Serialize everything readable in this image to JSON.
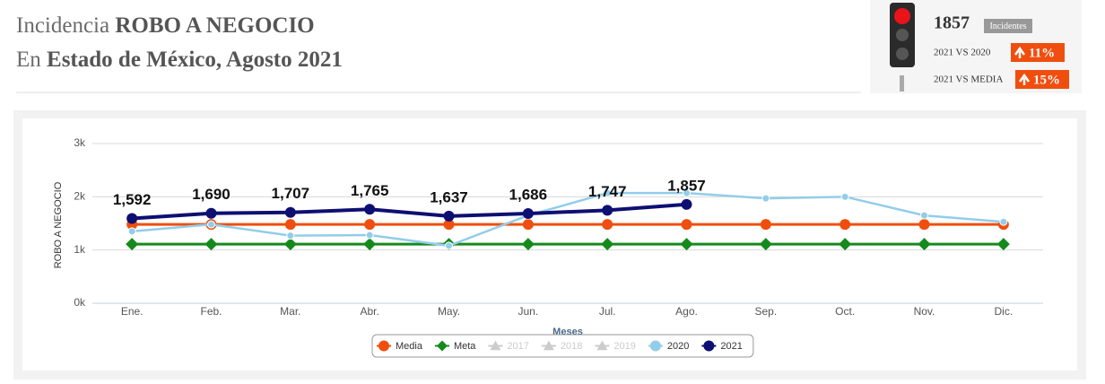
{
  "header": {
    "line1": [
      "Incidencia",
      "ROBO A NEGOCIO"
    ],
    "line2": [
      "En",
      "Estado de México",
      ", Agosto 2021"
    ]
  },
  "indicator": {
    "value": 1857,
    "badge": "Incidentes",
    "comparisons": [
      {
        "label": "2021 VS 2020",
        "change": "11%"
      },
      {
        "label": "2021 VS MEDIA",
        "change": "15%"
      }
    ]
  },
  "chart_data": {
    "type": "line",
    "categories": [
      "Ene.",
      "Feb.",
      "Mar.",
      "Abr.",
      "May.",
      "Jun.",
      "Jul.",
      "Ago.",
      "Sep.",
      "Oct.",
      "Nov.",
      "Dic."
    ],
    "x_label": "Meses",
    "y_label": "ROBO A NEGOCIO",
    "ylim": [
      0,
      3000
    ],
    "yticks": [
      {
        "value": 0,
        "label": "0k"
      },
      {
        "value": 1000,
        "label": "1k"
      },
      {
        "value": 2000,
        "label": "2k"
      },
      {
        "value": 3000,
        "label": "3k"
      }
    ],
    "grid": true,
    "series": [
      {
        "name": "Media",
        "color": "#f04e0e",
        "marker": "circle",
        "visible": true,
        "values": [
          1480,
          1480,
          1480,
          1480,
          1480,
          1480,
          1480,
          1480,
          1480,
          1480,
          1480,
          1480
        ]
      },
      {
        "name": "Meta",
        "color": "#158a1c",
        "marker": "diamond",
        "visible": true,
        "values": [
          1110,
          1110,
          1110,
          1110,
          1110,
          1110,
          1110,
          1110,
          1110,
          1110,
          1110,
          1110
        ]
      },
      {
        "name": "2017",
        "color": "#cccccc",
        "marker": "triangle",
        "visible": false,
        "values": [
          null,
          null,
          null,
          null,
          null,
          null,
          null,
          null,
          null,
          null,
          null,
          null
        ]
      },
      {
        "name": "2018",
        "color": "#cccccc",
        "marker": "triangle",
        "visible": false,
        "values": [
          null,
          null,
          null,
          null,
          null,
          null,
          null,
          null,
          null,
          null,
          null,
          null
        ]
      },
      {
        "name": "2019",
        "color": "#cccccc",
        "marker": "triangle",
        "visible": false,
        "values": [
          null,
          null,
          null,
          null,
          null,
          null,
          null,
          null,
          null,
          null,
          null,
          null
        ]
      },
      {
        "name": "2020",
        "color": "#92cdea",
        "marker": "circle",
        "visible": true,
        "values": [
          1350,
          1480,
          1270,
          1280,
          1080,
          1650,
          2070,
          2070,
          1970,
          2000,
          1650,
          1530
        ]
      },
      {
        "name": "2021",
        "color": "#0e0f72",
        "marker": "circle",
        "visible": true,
        "values": [
          1592,
          1690,
          1707,
          1765,
          1637,
          1686,
          1747,
          1857,
          null,
          null,
          null,
          null
        ],
        "value_labels": [
          "1,592",
          "1,690",
          "1,707",
          "1,765",
          "1,637",
          "1,686",
          "1,747",
          "1,857",
          null,
          null,
          null,
          null
        ]
      }
    ],
    "legend": "bottom"
  }
}
